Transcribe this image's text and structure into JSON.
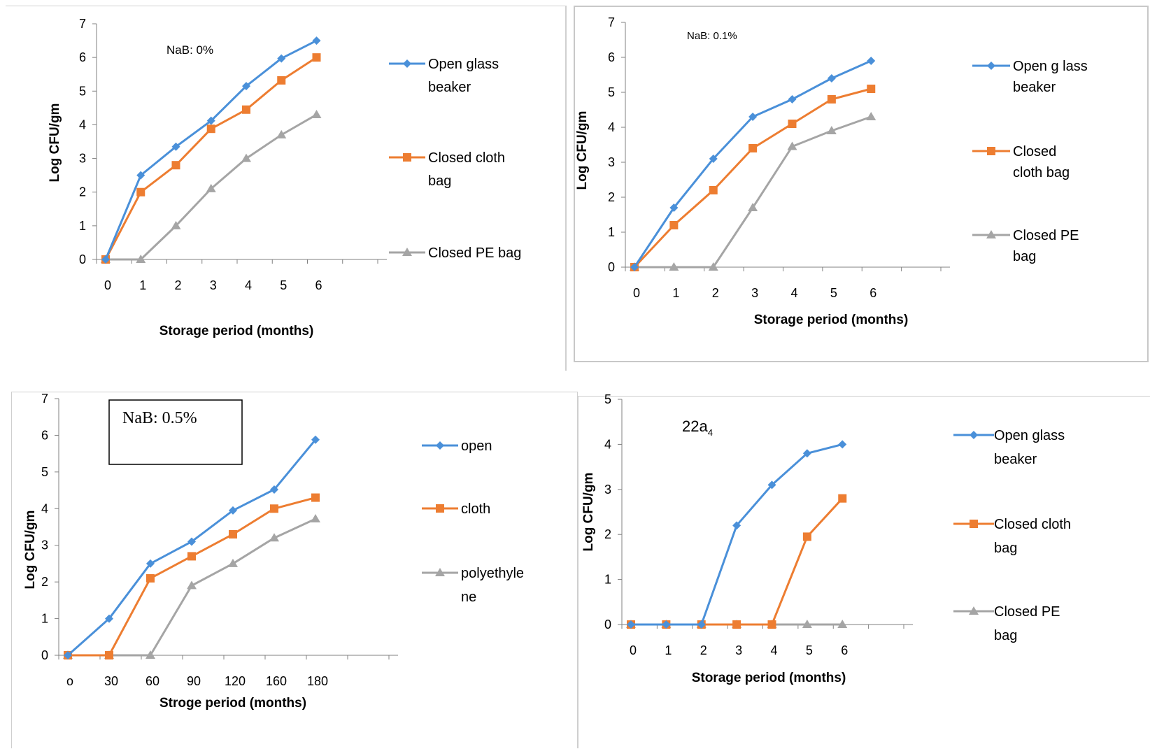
{
  "colors": {
    "open": "#4A90D9",
    "cloth": "#ED7D31",
    "pe": "#A5A5A5"
  },
  "chart_data": [
    {
      "type": "line",
      "annotation": "NaB: 0%",
      "xlabel": "Storage period (months)",
      "ylabel": "Log CFU/gm",
      "categories": [
        "0",
        "1",
        "2",
        "3",
        "4",
        "5",
        "6"
      ],
      "ylim": [
        0,
        7
      ],
      "yticks": [
        "0",
        "1",
        "2",
        "3",
        "4",
        "5",
        "6",
        "7"
      ],
      "legend_position": "right",
      "series": [
        {
          "name": "Open glass beaker",
          "marker": "diamond",
          "values": [
            0,
            2.5,
            3.35,
            4.12,
            5.15,
            5.97,
            6.5
          ]
        },
        {
          "name": "Closed cloth bag",
          "marker": "square",
          "values": [
            0,
            2.0,
            2.8,
            3.88,
            4.45,
            5.32,
            6.0
          ]
        },
        {
          "name": "Closed PE bag",
          "marker": "triangle",
          "values": [
            0,
            0,
            1.0,
            2.1,
            3.0,
            3.7,
            4.3
          ]
        }
      ]
    },
    {
      "type": "line",
      "annotation": "NaB: 0.1%",
      "xlabel": "Storage period (months)",
      "ylabel": "Log CFU/gm",
      "categories": [
        "0",
        "1",
        "2",
        "3",
        "4",
        "5",
        "6"
      ],
      "ylim": [
        0,
        7
      ],
      "yticks": [
        "0",
        "1",
        "2",
        "3",
        "4",
        "5",
        "6",
        "7"
      ],
      "legend_position": "right",
      "series": [
        {
          "name": "Open g lass beaker",
          "marker": "diamond",
          "values": [
            0,
            1.7,
            3.1,
            4.3,
            4.8,
            5.4,
            5.9
          ]
        },
        {
          "name": "Closed cloth bag",
          "marker": "square",
          "values": [
            0,
            1.2,
            2.2,
            3.4,
            4.1,
            4.8,
            5.1
          ]
        },
        {
          "name": "Closed PE bag",
          "marker": "triangle",
          "values": [
            0,
            0,
            0,
            1.7,
            3.45,
            3.9,
            4.3
          ]
        }
      ]
    },
    {
      "type": "line",
      "annotation": "NaB: 0.5%",
      "annotation_boxed": true,
      "xlabel": "Stroge period (months)",
      "ylabel": "Log CFU/gm",
      "categories": [
        "o",
        "30",
        "60",
        "90",
        "120",
        "160",
        "180"
      ],
      "ylim": [
        0,
        7
      ],
      "yticks": [
        "0",
        "1",
        "2",
        "3",
        "4",
        "5",
        "6",
        "7"
      ],
      "legend_position": "right",
      "series": [
        {
          "name": "open",
          "marker": "diamond",
          "values": [
            0,
            1.0,
            2.5,
            3.1,
            3.95,
            4.52,
            5.88
          ]
        },
        {
          "name": "cloth",
          "marker": "square",
          "values": [
            0,
            0,
            2.1,
            2.7,
            3.3,
            4.0,
            4.3
          ]
        },
        {
          "name": "polyethylene",
          "marker": "triangle",
          "values": [
            0,
            0,
            0,
            1.9,
            2.5,
            3.2,
            3.72
          ]
        }
      ]
    },
    {
      "type": "line",
      "annotation": "22a",
      "annotation_sub": "4",
      "xlabel": "Storage period (months)",
      "ylabel": "Log CFU/gm",
      "categories": [
        "0",
        "1",
        "2",
        "3",
        "4",
        "5",
        "6"
      ],
      "ylim": [
        0,
        5
      ],
      "yticks": [
        "0",
        "1",
        "2",
        "3",
        "4",
        "5"
      ],
      "legend_position": "right",
      "series": [
        {
          "name": "Open glass beaker",
          "marker": "diamond",
          "values": [
            0,
            0,
            0,
            2.2,
            3.1,
            3.8,
            4.0
          ]
        },
        {
          "name": "Closed cloth bag",
          "marker": "square",
          "values": [
            0,
            0,
            0,
            0,
            0,
            1.95,
            2.8
          ]
        },
        {
          "name": "Closed PE bag",
          "marker": "triangle",
          "values": [
            0,
            0,
            0,
            0,
            0,
            0,
            0
          ]
        }
      ]
    }
  ]
}
